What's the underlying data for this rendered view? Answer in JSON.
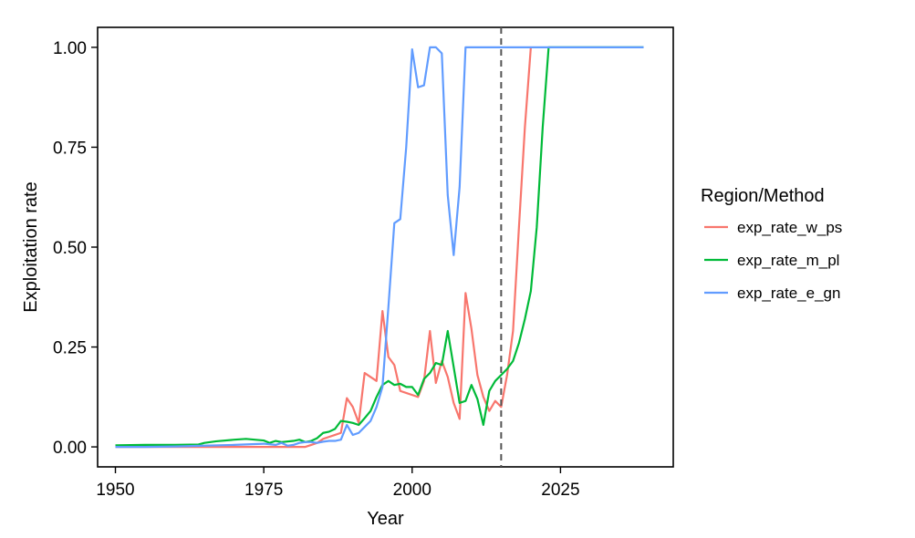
{
  "chart_data": {
    "type": "line",
    "xlabel": "Year",
    "ylabel": "Exploitation rate",
    "xlim": [
      1947,
      2044
    ],
    "ylim": [
      -0.05,
      1.05
    ],
    "x_ticks": [
      1950,
      1975,
      2000,
      2025
    ],
    "y_ticks": [
      0.0,
      0.25,
      0.5,
      0.75,
      1.0
    ],
    "y_tick_labels": [
      "0.00",
      "0.25",
      "0.50",
      "0.75",
      "1.00"
    ],
    "grid": false,
    "vline": {
      "x": 2015,
      "style": "dashed",
      "color": "#555555"
    },
    "legend": {
      "title": "Region/Method",
      "position": "right"
    },
    "series": [
      {
        "name": "exp_rate_w_ps",
        "color": "#F8766D",
        "points": [
          [
            1950,
            0.0
          ],
          [
            1955,
            0.0
          ],
          [
            1960,
            0.0
          ],
          [
            1965,
            0.0
          ],
          [
            1970,
            0.0
          ],
          [
            1975,
            0.0
          ],
          [
            1980,
            0.0
          ],
          [
            1982,
            0.0
          ],
          [
            1983,
            0.005
          ],
          [
            1984,
            0.01
          ],
          [
            1985,
            0.02
          ],
          [
            1986,
            0.025
          ],
          [
            1987,
            0.03
          ],
          [
            1988,
            0.035
          ],
          [
            1989,
            0.122
          ],
          [
            1990,
            0.1
          ],
          [
            1991,
            0.06
          ],
          [
            1992,
            0.185
          ],
          [
            1993,
            0.175
          ],
          [
            1994,
            0.165
          ],
          [
            1995,
            0.34
          ],
          [
            1996,
            0.225
          ],
          [
            1997,
            0.205
          ],
          [
            1998,
            0.14
          ],
          [
            1999,
            0.135
          ],
          [
            2000,
            0.13
          ],
          [
            2001,
            0.125
          ],
          [
            2002,
            0.165
          ],
          [
            2003,
            0.29
          ],
          [
            2004,
            0.16
          ],
          [
            2005,
            0.215
          ],
          [
            2006,
            0.175
          ],
          [
            2007,
            0.11
          ],
          [
            2008,
            0.07
          ],
          [
            2009,
            0.385
          ],
          [
            2010,
            0.295
          ],
          [
            2011,
            0.18
          ],
          [
            2012,
            0.125
          ],
          [
            2013,
            0.09
          ],
          [
            2014,
            0.115
          ],
          [
            2015,
            0.1
          ],
          [
            2016,
            0.18
          ],
          [
            2017,
            0.29
          ],
          [
            2018,
            0.55
          ],
          [
            2019,
            0.8
          ],
          [
            2020,
            1.0
          ]
        ]
      },
      {
        "name": "exp_rate_m_pl",
        "color": "#00BA38",
        "points": [
          [
            1950,
            0.004
          ],
          [
            1955,
            0.005
          ],
          [
            1960,
            0.005
          ],
          [
            1964,
            0.006
          ],
          [
            1965,
            0.01
          ],
          [
            1967,
            0.014
          ],
          [
            1970,
            0.018
          ],
          [
            1972,
            0.02
          ],
          [
            1975,
            0.016
          ],
          [
            1976,
            0.01
          ],
          [
            1977,
            0.015
          ],
          [
            1978,
            0.012
          ],
          [
            1980,
            0.015
          ],
          [
            1981,
            0.018
          ],
          [
            1982,
            0.012
          ],
          [
            1983,
            0.015
          ],
          [
            1984,
            0.022
          ],
          [
            1985,
            0.035
          ],
          [
            1986,
            0.038
          ],
          [
            1987,
            0.045
          ],
          [
            1988,
            0.065
          ],
          [
            1989,
            0.063
          ],
          [
            1990,
            0.06
          ],
          [
            1991,
            0.055
          ],
          [
            1992,
            0.072
          ],
          [
            1993,
            0.09
          ],
          [
            1994,
            0.125
          ],
          [
            1995,
            0.155
          ],
          [
            1996,
            0.165
          ],
          [
            1997,
            0.155
          ],
          [
            1998,
            0.158
          ],
          [
            1999,
            0.15
          ],
          [
            2000,
            0.15
          ],
          [
            2001,
            0.13
          ],
          [
            2002,
            0.17
          ],
          [
            2003,
            0.185
          ],
          [
            2004,
            0.21
          ],
          [
            2005,
            0.205
          ],
          [
            2006,
            0.29
          ],
          [
            2007,
            0.2
          ],
          [
            2008,
            0.11
          ],
          [
            2009,
            0.115
          ],
          [
            2010,
            0.155
          ],
          [
            2011,
            0.12
          ],
          [
            2012,
            0.055
          ],
          [
            2013,
            0.14
          ],
          [
            2014,
            0.165
          ],
          [
            2015,
            0.18
          ],
          [
            2016,
            0.195
          ],
          [
            2017,
            0.215
          ],
          [
            2018,
            0.26
          ],
          [
            2019,
            0.32
          ],
          [
            2020,
            0.39
          ],
          [
            2021,
            0.55
          ],
          [
            2022,
            0.8
          ],
          [
            2023,
            1.0
          ],
          [
            2039,
            1.0
          ]
        ]
      },
      {
        "name": "exp_rate_e_gn",
        "color": "#619CFF",
        "points": [
          [
            1950,
            0.0
          ],
          [
            1955,
            0.0
          ],
          [
            1960,
            0.001
          ],
          [
            1965,
            0.003
          ],
          [
            1970,
            0.005
          ],
          [
            1975,
            0.008
          ],
          [
            1977,
            0.005
          ],
          [
            1978,
            0.01
          ],
          [
            1979,
            0.003
          ],
          [
            1980,
            0.005
          ],
          [
            1981,
            0.01
          ],
          [
            1982,
            0.012
          ],
          [
            1983,
            0.012
          ],
          [
            1984,
            0.01
          ],
          [
            1985,
            0.013
          ],
          [
            1986,
            0.015
          ],
          [
            1987,
            0.015
          ],
          [
            1988,
            0.018
          ],
          [
            1989,
            0.055
          ],
          [
            1990,
            0.03
          ],
          [
            1991,
            0.035
          ],
          [
            1992,
            0.05
          ],
          [
            1993,
            0.065
          ],
          [
            1994,
            0.1
          ],
          [
            1995,
            0.15
          ],
          [
            1996,
            0.35
          ],
          [
            1997,
            0.56
          ],
          [
            1998,
            0.57
          ],
          [
            1999,
            0.75
          ],
          [
            2000,
            0.995
          ],
          [
            2001,
            0.9
          ],
          [
            2002,
            0.905
          ],
          [
            2003,
            1.0
          ],
          [
            2004,
            1.0
          ],
          [
            2005,
            0.985
          ],
          [
            2006,
            0.63
          ],
          [
            2007,
            0.48
          ],
          [
            2008,
            0.65
          ],
          [
            2009,
            1.0
          ],
          [
            2015,
            1.0
          ],
          [
            2020,
            1.0
          ],
          [
            2025,
            1.0
          ],
          [
            2030,
            1.0
          ],
          [
            2035,
            1.0
          ],
          [
            2039,
            1.0
          ]
        ]
      }
    ]
  }
}
